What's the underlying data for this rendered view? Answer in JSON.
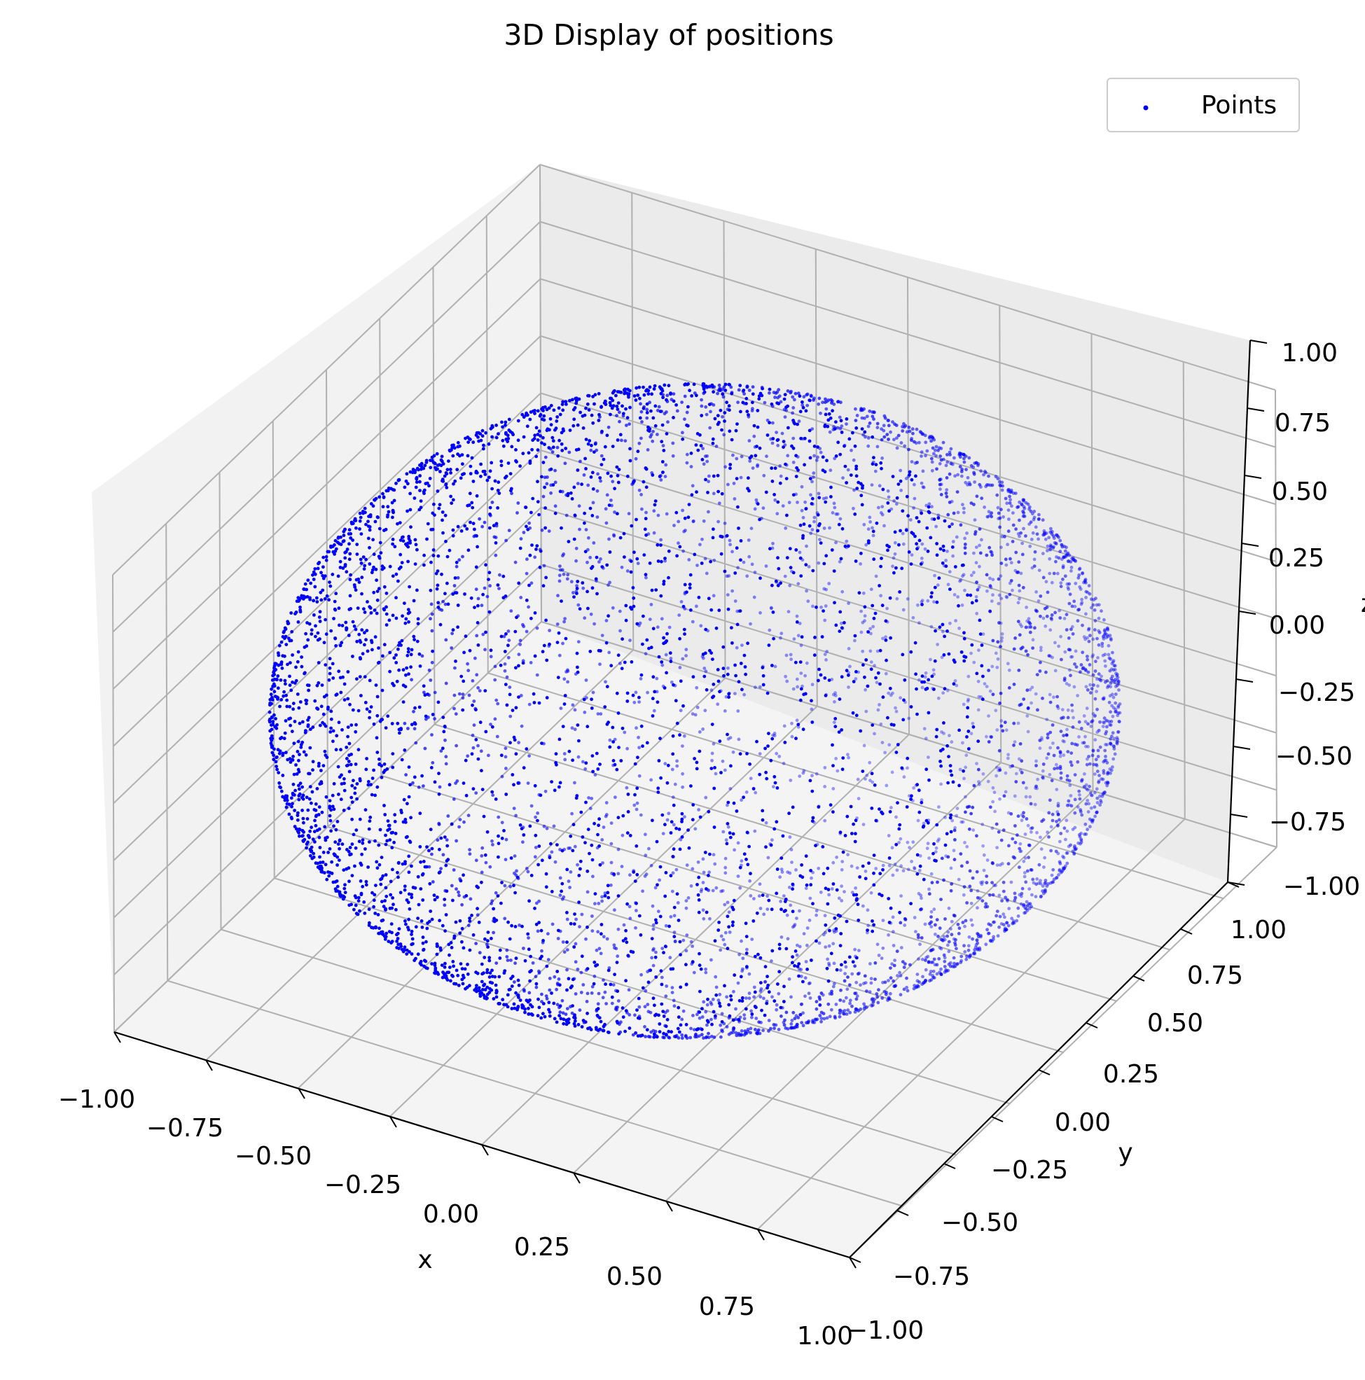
{
  "chart_data": {
    "type": "scatter",
    "projection": "3d",
    "title": "3D Display of positions",
    "xlabel": "x",
    "ylabel": "y",
    "zlabel": "z",
    "xlim": [
      -1.0,
      1.0
    ],
    "ylim": [
      -1.0,
      1.0
    ],
    "zlim": [
      -1.0,
      1.0
    ],
    "xticks": [
      "−1.00",
      "−0.75",
      "−0.50",
      "−0.25",
      "0.00",
      "0.25",
      "0.50",
      "0.75",
      "1.00"
    ],
    "yticks": [
      "−1.00",
      "−0.75",
      "−0.50",
      "−0.25",
      "0.00",
      "0.25",
      "0.50",
      "0.75",
      "1.00"
    ],
    "zticks": [
      "−1.00",
      "−0.75",
      "−0.50",
      "−0.25",
      "0.00",
      "0.25",
      "0.50",
      "0.75",
      "1.00"
    ],
    "grid": true,
    "legend_position": "top-right",
    "series": [
      {
        "name": "Points",
        "color": "#0000ff",
        "distribution": "points uniformly distributed on the surface of the unit sphere (x² + y² + z² = 1)",
        "radius": 1.0,
        "center": [
          0.0,
          0.0,
          0.0
        ]
      }
    ]
  }
}
